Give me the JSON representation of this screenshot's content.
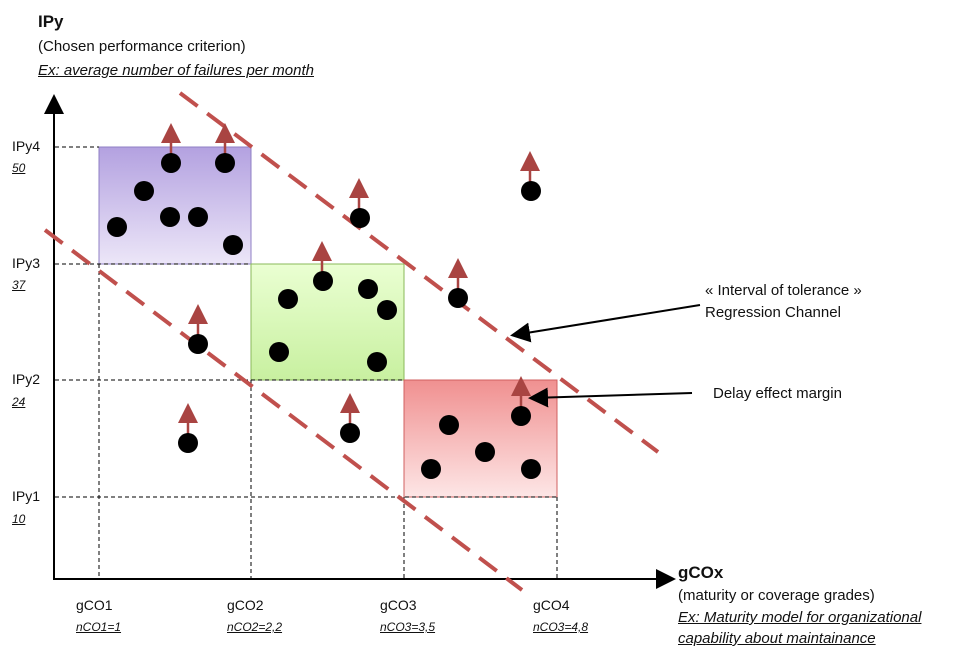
{
  "y_axis": {
    "title": "IPy",
    "subtitle": "(Chosen performance criterion)",
    "example": "Ex: average number of failures per month",
    "ticks": [
      {
        "label": "IPy4",
        "value": "50"
      },
      {
        "label": "IPy3",
        "value": "37"
      },
      {
        "label": "IPy2",
        "value": "24"
      },
      {
        "label": "IPy1",
        "value": "10"
      }
    ]
  },
  "x_axis": {
    "title": "gCOx",
    "subtitle": "(maturity or coverage grades)",
    "example_line1": "Ex: Maturity model for organizational",
    "example_line2": "capability about maintainance",
    "ticks": [
      {
        "label": "gCO1",
        "value": "nCO1=1"
      },
      {
        "label": "gCO2",
        "value": "nCO2=2,2"
      },
      {
        "label": "gCO3",
        "value": "nCO3=3,5"
      },
      {
        "label": "gCO4",
        "value": "nCO3=4,8"
      }
    ]
  },
  "annotations": {
    "tolerance_line1": "« Interval of tolerance »",
    "tolerance_line2": "Regression Channel",
    "delay": "Delay effect margin"
  },
  "colors": {
    "box_purple": "#c9b8ec",
    "box_green": "#d8f5b0",
    "box_red": "#f6a9a9",
    "regression_dash": "#c0504d",
    "arrow": "#a94442",
    "dot": "#000000"
  }
}
